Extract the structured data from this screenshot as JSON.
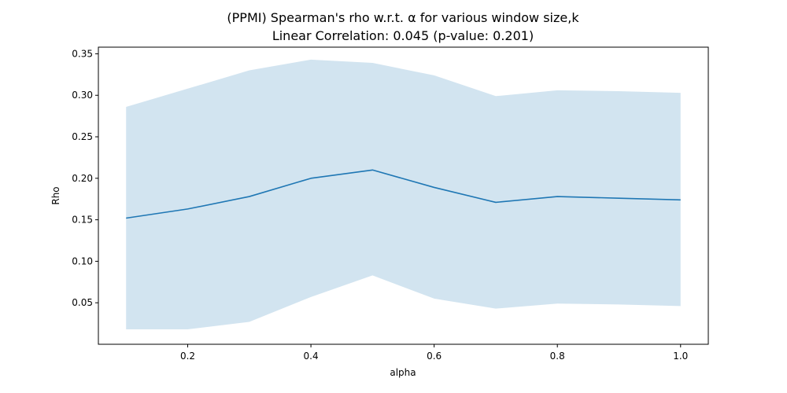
{
  "chart_data": {
    "type": "line",
    "title": "(PPMI) Spearman's rho w.r.t. α for various window size,k",
    "subtitle": "Linear Correlation: 0.045 (p-value: 0.201)",
    "xlabel": "alpha",
    "ylabel": "Rho",
    "xlim": [
      0.055,
      1.045
    ],
    "ylim": [
      0.0,
      0.358
    ],
    "x_ticks": [
      0.2,
      0.4,
      0.6,
      0.8,
      1.0
    ],
    "x_tick_labels": [
      "0.2",
      "0.4",
      "0.6",
      "0.8",
      "1.0"
    ],
    "y_ticks": [
      0.05,
      0.1,
      0.15,
      0.2,
      0.25,
      0.3,
      0.35
    ],
    "y_tick_labels": [
      "0.05",
      "0.10",
      "0.15",
      "0.20",
      "0.25",
      "0.30",
      "0.35"
    ],
    "x": [
      0.1,
      0.2,
      0.3,
      0.4,
      0.5,
      0.6,
      0.7,
      0.8,
      0.9,
      1.0
    ],
    "series": [
      {
        "values": [
          0.152,
          0.163,
          0.178,
          0.2,
          0.21,
          0.189,
          0.171,
          0.178,
          0.176,
          0.174
        ],
        "lower": [
          0.018,
          0.018,
          0.027,
          0.057,
          0.083,
          0.055,
          0.043,
          0.049,
          0.048,
          0.046
        ],
        "upper": [
          0.286,
          0.308,
          0.33,
          0.343,
          0.339,
          0.324,
          0.299,
          0.306,
          0.305,
          0.303
        ]
      }
    ],
    "colors": {
      "line": "#1f77b4",
      "band": "#1f77b4"
    },
    "band_opacity": 0.2,
    "grid": false,
    "legend": "none"
  }
}
